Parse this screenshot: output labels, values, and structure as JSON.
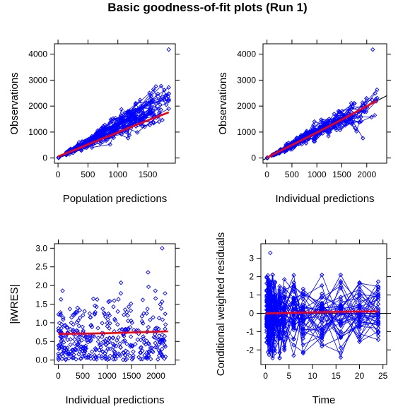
{
  "title": "Basic goodness-of-fit plots (Run 1)",
  "colors": {
    "points": "#0000ff",
    "smooth": "#ff0000",
    "identity": "#000000",
    "frame": "#000000"
  },
  "chart_data": [
    {
      "id": "pred-obs",
      "type": "scatter",
      "xlabel": "Population predictions",
      "ylabel": "Observations",
      "xlim": [
        -60,
        1960
      ],
      "ylim": [
        -200,
        4400
      ],
      "xticks": [
        0,
        500,
        1000,
        1500
      ],
      "yticks": [
        0,
        1000,
        2000,
        3000,
        4000
      ],
      "lines": "individual profiles connected",
      "smooth": [
        [
          0,
          60
        ],
        [
          300,
          330
        ],
        [
          600,
          620
        ],
        [
          900,
          890
        ],
        [
          1200,
          1180
        ],
        [
          1500,
          1450
        ],
        [
          1850,
          1760
        ]
      ],
      "identity": false,
      "grid": false
    },
    {
      "id": "ipred-obs",
      "type": "scatter",
      "xlabel": "Individual predictions",
      "ylabel": "Observations",
      "xlim": [
        -80,
        2400
      ],
      "ylim": [
        -200,
        4400
      ],
      "xticks": [
        0,
        500,
        1000,
        1500,
        2000
      ],
      "yticks": [
        0,
        1000,
        2000,
        3000,
        4000
      ],
      "lines": "individual profiles connected",
      "smooth": [
        [
          0,
          20
        ],
        [
          500,
          500
        ],
        [
          1000,
          980
        ],
        [
          1500,
          1480
        ],
        [
          2000,
          2000
        ],
        [
          2200,
          2200
        ]
      ],
      "identity": true,
      "grid": false
    },
    {
      "id": "ipred-abswres",
      "type": "scatter",
      "xlabel": "Individual predictions",
      "ylabel": "|iWRES|",
      "xlim": [
        -80,
        2400
      ],
      "ylim": [
        -0.12,
        3.12
      ],
      "xticks": [
        0,
        500,
        1000,
        1500,
        2000
      ],
      "yticks": [
        0.0,
        0.5,
        1.0,
        1.5,
        2.0,
        2.5,
        3.0
      ],
      "ytick_labels": [
        "0.0",
        "0.5",
        "1.0",
        "1.5",
        "2.0",
        "2.5",
        "3.0"
      ],
      "lines": "points only",
      "smooth": [
        [
          0,
          0.7
        ],
        [
          1000,
          0.72
        ],
        [
          2000,
          0.76
        ],
        [
          2250,
          0.77
        ]
      ],
      "identity": false,
      "grid": false
    },
    {
      "id": "time-cwres",
      "type": "scatter",
      "xlabel": "Time",
      "ylabel": "Conditional weighted residuals",
      "xlim": [
        -1,
        25.8
      ],
      "ylim": [
        -2.8,
        3.8
      ],
      "xticks": [
        0,
        5,
        10,
        15,
        20,
        25
      ],
      "yticks": [
        -2,
        -1,
        0,
        1,
        2,
        3
      ],
      "lines": "individual profiles connected",
      "smooth": [
        [
          0,
          0.0
        ],
        [
          5,
          0.02
        ],
        [
          10,
          0.05
        ],
        [
          15,
          0.08
        ],
        [
          20,
          0.1
        ],
        [
          24,
          0.1
        ]
      ],
      "reference_line": 0,
      "grid": false
    }
  ]
}
